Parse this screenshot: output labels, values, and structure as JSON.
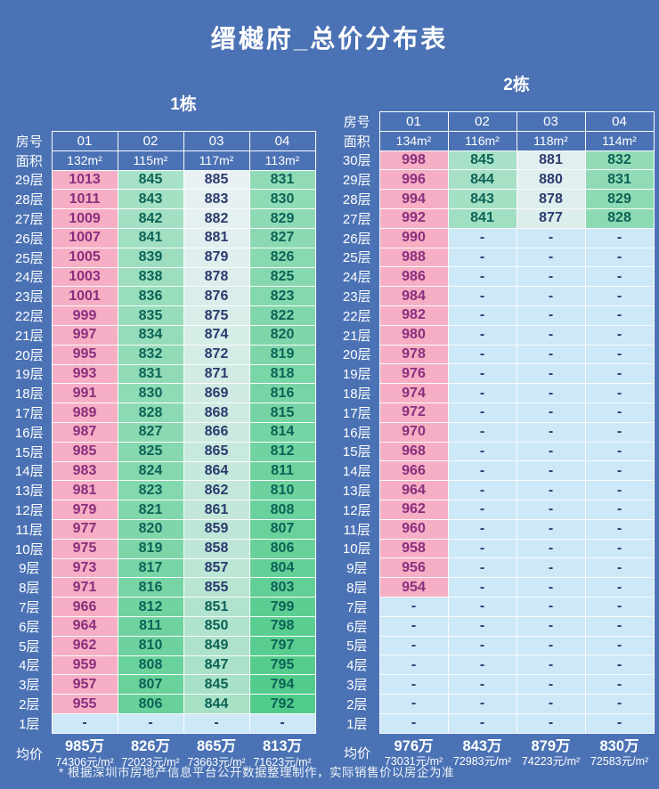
{
  "title": "缙樾府_总价分布表",
  "footnote": "* 根据深圳市房地产信息平台公开数据整理制作，实际销售价以房企为准",
  "labels": {
    "room": "房号",
    "area": "面积",
    "avg": "均价"
  },
  "colors": {
    "background": "#4b72b4",
    "border": "#fafbfd",
    "pink_bg": "#f5aec3",
    "pink_text": "#8b2e7e",
    "light_bg": "#e9f1f5",
    "green_bg": "#50cb89",
    "text_navy": "#2c3a6e",
    "text_green": "#0c6356",
    "dash_bg": "#cde8f7",
    "heat_pink_min": 950,
    "heat_light_at": 885,
    "heat_green_at": 792
  },
  "chart_data": {
    "type": "heatmap-table",
    "tables": [
      {
        "name": "1栋",
        "rooms": [
          "01",
          "02",
          "03",
          "04"
        ],
        "areas": [
          "132m²",
          "115m²",
          "117m²",
          "113m²"
        ],
        "floor_labels": [
          "29层",
          "28层",
          "27层",
          "26层",
          "25层",
          "24层",
          "23层",
          "22层",
          "21层",
          "20层",
          "19层",
          "18层",
          "17层",
          "16层",
          "15层",
          "14层",
          "13层",
          "12层",
          "11层",
          "10层",
          "9层",
          "8层",
          "7层",
          "6层",
          "5层",
          "4层",
          "3层",
          "2层",
          "1层"
        ],
        "prices": [
          [
            "1013",
            "845",
            "885",
            "831"
          ],
          [
            "1011",
            "843",
            "883",
            "830"
          ],
          [
            "1009",
            "842",
            "882",
            "829"
          ],
          [
            "1007",
            "841",
            "881",
            "827"
          ],
          [
            "1005",
            "839",
            "879",
            "826"
          ],
          [
            "1003",
            "838",
            "878",
            "825"
          ],
          [
            "1001",
            "836",
            "876",
            "823"
          ],
          [
            "999",
            "835",
            "875",
            "822"
          ],
          [
            "997",
            "834",
            "874",
            "820"
          ],
          [
            "995",
            "832",
            "872",
            "819"
          ],
          [
            "993",
            "831",
            "871",
            "818"
          ],
          [
            "991",
            "830",
            "869",
            "816"
          ],
          [
            "989",
            "828",
            "868",
            "815"
          ],
          [
            "987",
            "827",
            "866",
            "814"
          ],
          [
            "985",
            "825",
            "865",
            "812"
          ],
          [
            "983",
            "824",
            "864",
            "811"
          ],
          [
            "981",
            "823",
            "862",
            "810"
          ],
          [
            "979",
            "821",
            "861",
            "808"
          ],
          [
            "977",
            "820",
            "859",
            "807"
          ],
          [
            "975",
            "819",
            "858",
            "806"
          ],
          [
            "973",
            "817",
            "857",
            "804"
          ],
          [
            "971",
            "816",
            "855",
            "803"
          ],
          [
            "966",
            "812",
            "851",
            "799"
          ],
          [
            "964",
            "811",
            "850",
            "798"
          ],
          [
            "962",
            "810",
            "849",
            "797"
          ],
          [
            "959",
            "808",
            "847",
            "795"
          ],
          [
            "957",
            "807",
            "845",
            "794"
          ],
          [
            "955",
            "806",
            "844",
            "792"
          ],
          [
            "-",
            "-",
            "-",
            "-"
          ]
        ],
        "avg": [
          {
            "t": "985万",
            "u": "74306元/m²"
          },
          {
            "t": "826万",
            "u": "72023元/m²"
          },
          {
            "t": "865万",
            "u": "73663元/m²"
          },
          {
            "t": "813万",
            "u": "71623元/m²"
          }
        ]
      },
      {
        "name": "2栋",
        "rooms": [
          "01",
          "02",
          "03",
          "04"
        ],
        "areas": [
          "134m²",
          "116m²",
          "118m²",
          "114m²"
        ],
        "floor_labels": [
          "30层",
          "29层",
          "28层",
          "27层",
          "26层",
          "25层",
          "24层",
          "23层",
          "22层",
          "21层",
          "20层",
          "19层",
          "18层",
          "17层",
          "16层",
          "15层",
          "14层",
          "13层",
          "12层",
          "11层",
          "10层",
          "9层",
          "8层",
          "7层",
          "6层",
          "5层",
          "4层",
          "3层",
          "2层",
          "1层"
        ],
        "prices": [
          [
            "998",
            "845",
            "881",
            "832"
          ],
          [
            "996",
            "844",
            "880",
            "831"
          ],
          [
            "994",
            "843",
            "878",
            "829"
          ],
          [
            "992",
            "841",
            "877",
            "828"
          ],
          [
            "990",
            "-",
            "-",
            "-"
          ],
          [
            "988",
            "-",
            "-",
            "-"
          ],
          [
            "986",
            "-",
            "-",
            "-"
          ],
          [
            "984",
            "-",
            "-",
            "-"
          ],
          [
            "982",
            "-",
            "-",
            "-"
          ],
          [
            "980",
            "-",
            "-",
            "-"
          ],
          [
            "978",
            "-",
            "-",
            "-"
          ],
          [
            "976",
            "-",
            "-",
            "-"
          ],
          [
            "974",
            "-",
            "-",
            "-"
          ],
          [
            "972",
            "-",
            "-",
            "-"
          ],
          [
            "970",
            "-",
            "-",
            "-"
          ],
          [
            "968",
            "-",
            "-",
            "-"
          ],
          [
            "966",
            "-",
            "-",
            "-"
          ],
          [
            "964",
            "-",
            "-",
            "-"
          ],
          [
            "962",
            "-",
            "-",
            "-"
          ],
          [
            "960",
            "-",
            "-",
            "-"
          ],
          [
            "958",
            "-",
            "-",
            "-"
          ],
          [
            "956",
            "-",
            "-",
            "-"
          ],
          [
            "954",
            "-",
            "-",
            "-"
          ],
          [
            "-",
            "-",
            "-",
            "-"
          ],
          [
            "-",
            "-",
            "-",
            "-"
          ],
          [
            "-",
            "-",
            "-",
            "-"
          ],
          [
            "-",
            "-",
            "-",
            "-"
          ],
          [
            "-",
            "-",
            "-",
            "-"
          ],
          [
            "-",
            "-",
            "-",
            "-"
          ],
          [
            "-",
            "-",
            "-",
            "-"
          ]
        ],
        "avg": [
          {
            "t": "976万",
            "u": "73031元/m²"
          },
          {
            "t": "843万",
            "u": "72983元/m²"
          },
          {
            "t": "879万",
            "u": "74223元/m²"
          },
          {
            "t": "830万",
            "u": "72583元/m²"
          }
        ]
      }
    ]
  }
}
